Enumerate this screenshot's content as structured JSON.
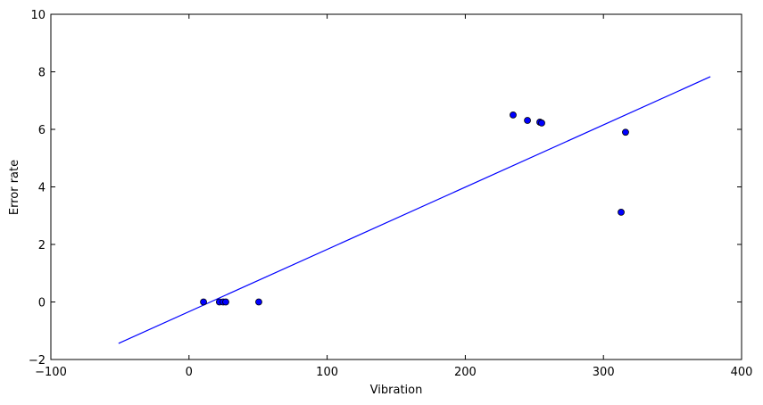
{
  "chart_data": {
    "type": "scatter",
    "x_label": "Vibration",
    "y_label": "Error rate",
    "x": [
      10.5,
      22,
      24.7,
      26.6,
      50.5,
      234.6,
      245,
      254,
      255.3,
      316,
      312.8
    ],
    "values": [
      0,
      0,
      0,
      0,
      0,
      6.5,
      6.31,
      6.25,
      6.22,
      5.9,
      3.12
    ],
    "color": "#0000ff",
    "line": {
      "x": [
        -51,
        377.4
      ],
      "values": [
        -1.44,
        7.83
      ],
      "color": "#0000ff"
    },
    "xlim": [
      -100,
      400
    ],
    "xticks": [
      {
        "value": -100,
        "label": "−100"
      },
      0,
      100,
      200,
      300,
      400
    ],
    "ylim": [
      -2,
      10
    ],
    "yticks": [
      {
        "value": -2,
        "label": "−2"
      },
      0,
      2,
      4,
      6,
      8,
      10
    ],
    "grid": false
  }
}
